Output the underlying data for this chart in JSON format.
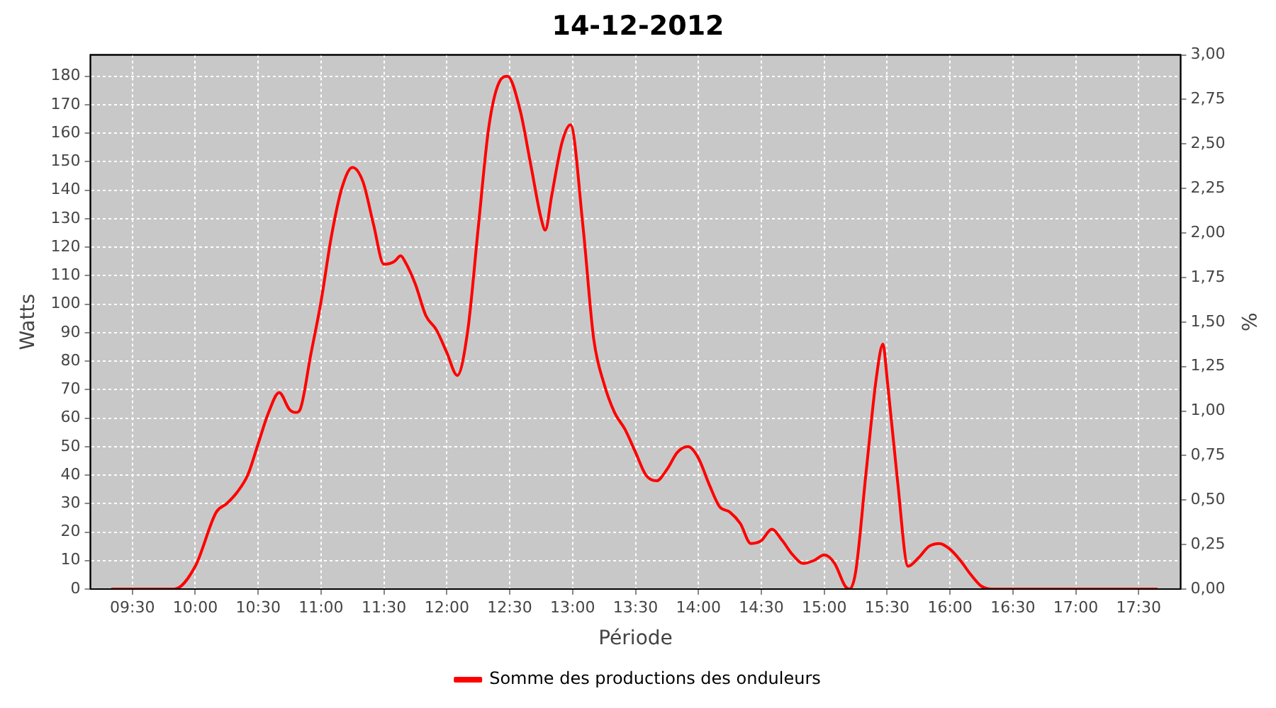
{
  "chart_data": {
    "type": "line",
    "title": "14-12-2012",
    "xlabel": "Période",
    "ylabel": "Watts",
    "y2label": "%",
    "x": [
      9.333,
      9.833,
      10.0,
      10.167,
      10.25,
      10.333,
      10.417,
      10.5,
      10.583,
      10.667,
      10.75,
      10.8,
      10.833,
      10.917,
      11.0,
      11.083,
      11.167,
      11.25,
      11.333,
      11.417,
      11.5,
      11.583,
      11.633,
      11.667,
      11.75,
      11.833,
      11.917,
      12.0,
      12.083,
      12.167,
      12.25,
      12.333,
      12.417,
      12.483,
      12.583,
      12.667,
      12.75,
      12.783,
      12.833,
      12.917,
      12.983,
      13.083,
      13.167,
      13.25,
      13.333,
      13.417,
      13.5,
      13.583,
      13.667,
      13.75,
      13.833,
      13.917,
      14.0,
      14.083,
      14.167,
      14.25,
      14.333,
      14.417,
      14.5,
      14.583,
      14.667,
      14.75,
      14.833,
      14.917,
      15.0,
      15.083,
      15.167,
      15.2,
      15.25,
      15.333,
      15.417,
      15.467,
      15.5,
      15.583,
      15.667,
      15.75,
      15.833,
      15.917,
      16.0,
      16.083,
      16.167,
      16.25,
      16.333,
      16.5,
      16.583,
      17.65
    ],
    "series": [
      {
        "name": "Somme des productions des onduleurs",
        "color": "#ff0000",
        "values": [
          0,
          0,
          8,
          27,
          30,
          34,
          40,
          51,
          62,
          69,
          63,
          62,
          63,
          82,
          101,
          124,
          141,
          148,
          143,
          128,
          114,
          115,
          117,
          115,
          107,
          96,
          91,
          83,
          75,
          91,
          127,
          162,
          178,
          180,
          168,
          149,
          130,
          126,
          138,
          157,
          163,
          127,
          88,
          72,
          62,
          56,
          48,
          40,
          38,
          42,
          48,
          50,
          46,
          37,
          29,
          27,
          23,
          16,
          17,
          21,
          17,
          12,
          9,
          10,
          12,
          9,
          1,
          0,
          6,
          41,
          75,
          86,
          74,
          38,
          8,
          11,
          15,
          16,
          14,
          10,
          5,
          1,
          0,
          0,
          0,
          0
        ]
      }
    ],
    "xlim": [
      9.1667,
      17.8333
    ],
    "xticks": [
      {
        "value": 9.5,
        "label": "09:30"
      },
      {
        "value": 10,
        "label": "10:00"
      },
      {
        "value": 10.5,
        "label": "10:30"
      },
      {
        "value": 11,
        "label": "11:00"
      },
      {
        "value": 11.5,
        "label": "11:30"
      },
      {
        "value": 12,
        "label": "12:00"
      },
      {
        "value": 12.5,
        "label": "12:30"
      },
      {
        "value": 13,
        "label": "13:00"
      },
      {
        "value": 13.5,
        "label": "13:30"
      },
      {
        "value": 14,
        "label": "14:00"
      },
      {
        "value": 14.5,
        "label": "14:30"
      },
      {
        "value": 15,
        "label": "15:00"
      },
      {
        "value": 15.5,
        "label": "15:30"
      },
      {
        "value": 16,
        "label": "16:00"
      },
      {
        "value": 16.5,
        "label": "16:30"
      },
      {
        "value": 17,
        "label": "17:00"
      },
      {
        "value": 17.5,
        "label": "17:30"
      }
    ],
    "ylim": [
      0,
      187.5
    ],
    "yticks": [
      0,
      10,
      20,
      30,
      40,
      50,
      60,
      70,
      80,
      90,
      100,
      110,
      120,
      130,
      140,
      150,
      160,
      170,
      180
    ],
    "y2lim": [
      0,
      3
    ],
    "y2ticks": [
      {
        "value": 0,
        "label": "0,00"
      },
      {
        "value": 0.25,
        "label": "0,25"
      },
      {
        "value": 0.5,
        "label": "0,50"
      },
      {
        "value": 0.75,
        "label": "0,75"
      },
      {
        "value": 1,
        "label": "1,00"
      },
      {
        "value": 1.25,
        "label": "1,25"
      },
      {
        "value": 1.5,
        "label": "1,50"
      },
      {
        "value": 1.75,
        "label": "1,75"
      },
      {
        "value": 2,
        "label": "2,00"
      },
      {
        "value": 2.25,
        "label": "2,25"
      },
      {
        "value": 2.5,
        "label": "2,50"
      },
      {
        "value": 2.75,
        "label": "2,75"
      },
      {
        "value": 3,
        "label": "3,00"
      }
    ],
    "grid": true,
    "legend": "bottom",
    "marker": "none",
    "line_style": "solid"
  }
}
